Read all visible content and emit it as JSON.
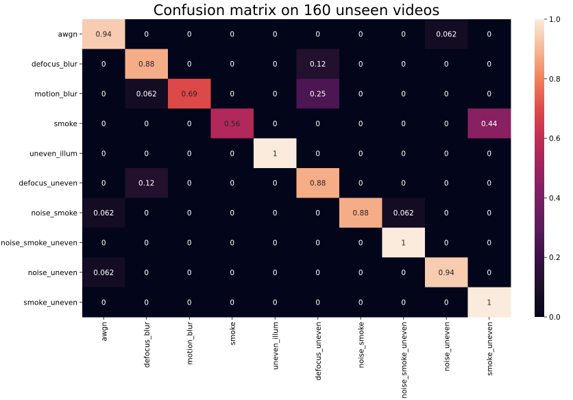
{
  "chart_data": {
    "type": "heatmap",
    "title": "Confusion matrix on 160 unseen videos",
    "xlabel": "",
    "ylabel": "",
    "row_labels": [
      "awgn",
      "defocus_blur",
      "motion_blur",
      "smoke",
      "uneven_illum",
      "defocus_uneven",
      "noise_smoke",
      "noise_smoke_uneven",
      "noise_uneven",
      "smoke_uneven"
    ],
    "col_labels": [
      "awgn",
      "defocus_blur",
      "motion_blur",
      "smoke",
      "uneven_illum",
      "defocus_uneven",
      "noise_smoke",
      "noise_smoke_uneven",
      "noise_uneven",
      "smoke_uneven"
    ],
    "values": [
      [
        0.94,
        0,
        0,
        0,
        0,
        0,
        0,
        0,
        0.062,
        0
      ],
      [
        0,
        0.88,
        0,
        0,
        0,
        0.12,
        0,
        0,
        0,
        0
      ],
      [
        0,
        0.062,
        0.69,
        0,
        0,
        0.25,
        0,
        0,
        0,
        0
      ],
      [
        0,
        0,
        0,
        0.56,
        0,
        0,
        0,
        0,
        0,
        0.44
      ],
      [
        0,
        0,
        0,
        0,
        1,
        0,
        0,
        0,
        0,
        0
      ],
      [
        0,
        0.12,
        0,
        0,
        0,
        0.88,
        0,
        0,
        0,
        0
      ],
      [
        0.062,
        0,
        0,
        0,
        0,
        0,
        0.88,
        0.062,
        0,
        0
      ],
      [
        0,
        0,
        0,
        0,
        0,
        0,
        0,
        1,
        0,
        0
      ],
      [
        0.062,
        0,
        0,
        0,
        0,
        0,
        0,
        0,
        0.94,
        0
      ],
      [
        0,
        0,
        0,
        0,
        0,
        0,
        0,
        0,
        0,
        1
      ]
    ],
    "colorbar": {
      "vmin": 0,
      "vmax": 1,
      "ticks": [
        0,
        0.2,
        0.4,
        0.6,
        0.8,
        1
      ],
      "tick_labels": [
        "0.0",
        "0.2",
        "0.4",
        "0.6",
        "0.8",
        "1.0"
      ],
      "colormap": "rocket"
    },
    "grid": false,
    "legend": "colorbar-right"
  }
}
